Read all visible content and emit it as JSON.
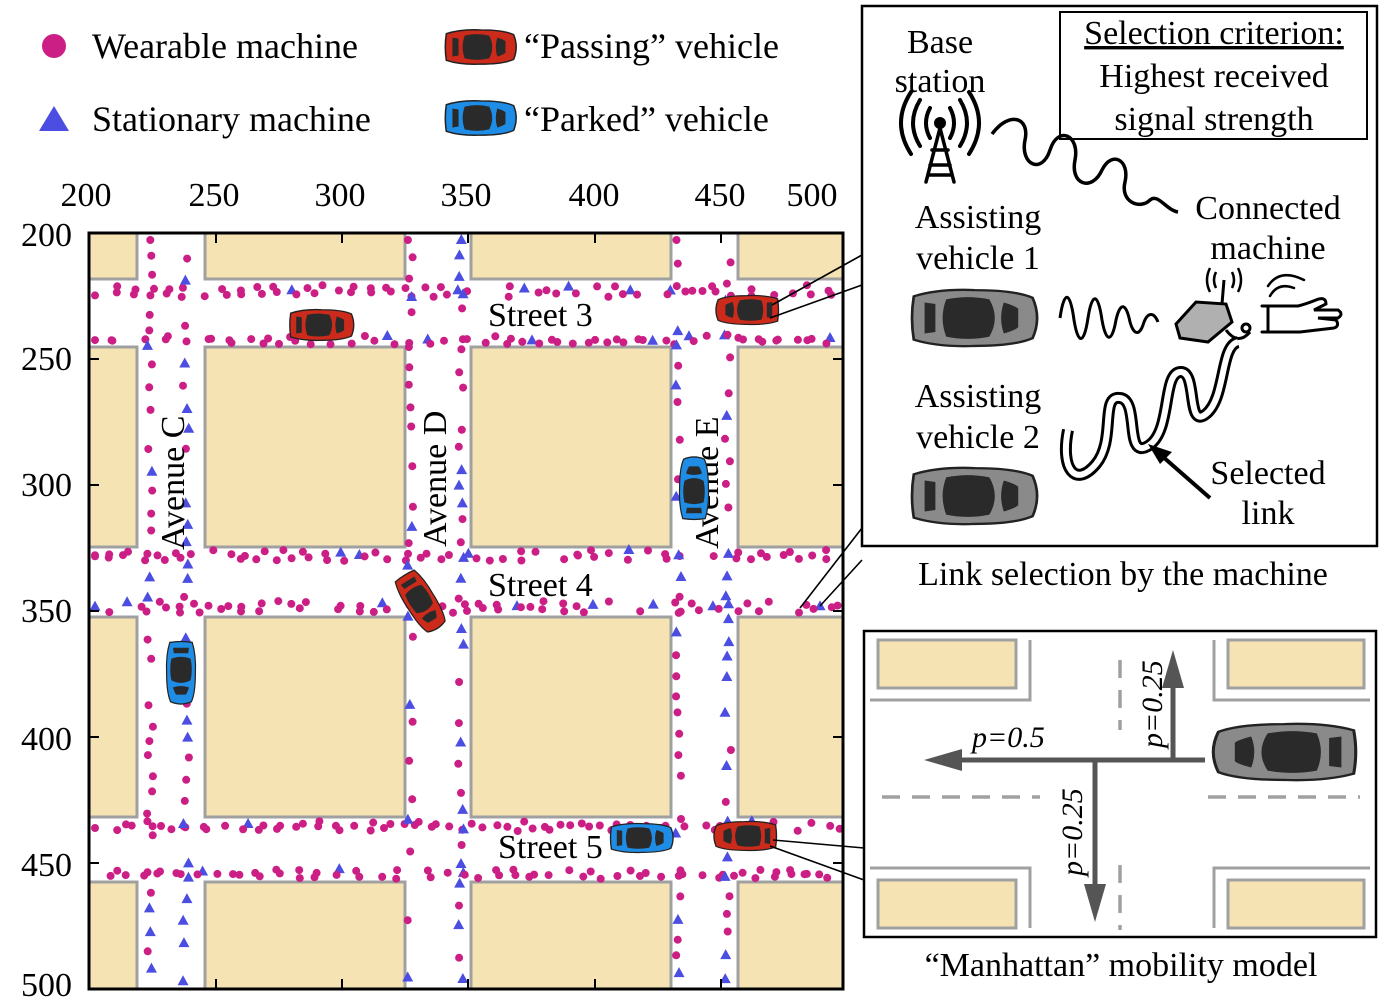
{
  "legend": {
    "wearable": "Wearable machine",
    "stationary": "Stationary machine",
    "passing": "“Passing” vehicle",
    "parked": "“Parked” vehicle"
  },
  "map": {
    "x_ticks": [
      "200",
      "250",
      "300",
      "350",
      "400",
      "450",
      "500"
    ],
    "y_ticks": [
      "200",
      "250",
      "300",
      "350",
      "400",
      "450",
      "500"
    ],
    "streets": [
      "Street 3",
      "Street 4",
      "Street 5"
    ],
    "avenues": [
      "Avenue C",
      "Avenue D",
      "Avenue E"
    ]
  },
  "link_panel": {
    "base_station": [
      "Base",
      "station"
    ],
    "criterion_title": "Selection criterion:",
    "criterion_text": [
      "Highest received",
      "signal strength"
    ],
    "connected_machine": [
      "Connected",
      "machine"
    ],
    "assisting_1": [
      "Assisting",
      "vehicle 1"
    ],
    "assisting_2": [
      "Assisting",
      "vehicle 2"
    ],
    "selected_link": [
      "Selected",
      "link"
    ],
    "caption": "Link selection by the machine"
  },
  "mobility_panel": {
    "p_left": "p=0.5",
    "p_up": "p=0.25",
    "p_down": "p=0.25",
    "caption": "“Manhattan” mobility model"
  },
  "colors": {
    "wearable": "#cc1f85",
    "stationary": "#4b4ee0",
    "block": "#f5e3b4",
    "block_edge": "#a0a0a0",
    "passing": "#cc2a1a",
    "parked": "#1f8de6",
    "car_gray": "#8a8a8a"
  }
}
